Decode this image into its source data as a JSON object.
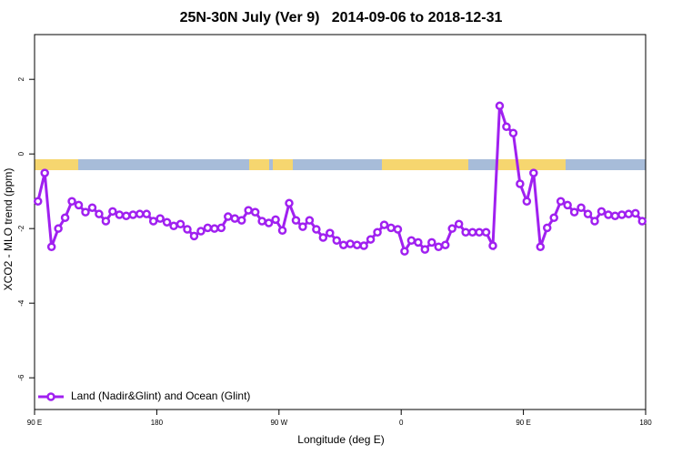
{
  "chart_data": {
    "type": "line",
    "title": "25N-30N July (Ver 9)   2014-09-06 to 2018-12-31",
    "x_label": "Longitude (deg E)",
    "y_label": "XCO2 - MLO trend (ppm)",
    "x": [
      92.5,
      97.5,
      102.5,
      107.5,
      112.5,
      117.5,
      122.5,
      127.5,
      132.5,
      137.5,
      142.5,
      147.5,
      152.5,
      157.5,
      162.5,
      167.5,
      172.5,
      177.5,
      182.5,
      187.5,
      192.5,
      197.5,
      202.5,
      207.5,
      212.5,
      217.5,
      222.5,
      227.5,
      232.5,
      237.5,
      242.5,
      247.5,
      252.5,
      257.5,
      262.5,
      267.5,
      272.5,
      277.5,
      282.5,
      287.5,
      292.5,
      297.5,
      302.5,
      307.5,
      312.5,
      317.5,
      322.5,
      327.5,
      332.5,
      337.5,
      342.5,
      347.5,
      352.5,
      357.5,
      362.5,
      367.5,
      372.5,
      377.5,
      382.5,
      387.5,
      392.5,
      397.5,
      402.5,
      407.5,
      412.5,
      417.5,
      422.5,
      427.5,
      432.5,
      437.5,
      442.5,
      447.5,
      452.5,
      457.5,
      462.5,
      467.5,
      472.5,
      477.5,
      482.5,
      487.5,
      492.5,
      497.5,
      502.5,
      507.5,
      512.5,
      517.5,
      522.5,
      527.5,
      532.5,
      537.5
    ],
    "series": [
      {
        "name": "Land (Nadir&Glint) and Ocean (Glint)",
        "color": "#a020f0",
        "values": [
          -1.27,
          -0.51,
          -2.49,
          -2.0,
          -1.71,
          -1.27,
          -1.37,
          -1.56,
          -1.44,
          -1.61,
          -1.8,
          -1.54,
          -1.63,
          -1.66,
          -1.63,
          -1.61,
          -1.61,
          -1.8,
          -1.73,
          -1.83,
          -1.93,
          -1.88,
          -2.02,
          -2.2,
          -2.07,
          -1.98,
          -2.0,
          -1.98,
          -1.68,
          -1.73,
          -1.78,
          -1.51,
          -1.56,
          -1.8,
          -1.85,
          -1.76,
          -2.05,
          -1.32,
          -1.78,
          -1.95,
          -1.78,
          -2.02,
          -2.24,
          -2.12,
          -2.32,
          -2.44,
          -2.41,
          -2.44,
          -2.46,
          -2.29,
          -2.1,
          -1.9,
          -1.98,
          -2.02,
          -2.61,
          -2.32,
          -2.37,
          -2.56,
          -2.37,
          -2.49,
          -2.44,
          -2.0,
          -1.88,
          -2.1,
          -2.1,
          -2.1,
          -2.1,
          -2.46,
          1.29,
          0.73,
          0.56,
          -0.8,
          -1.27,
          -0.51,
          -2.49,
          -1.98,
          -1.71,
          -1.27,
          -1.37,
          -1.56,
          -1.44,
          -1.61,
          -1.8,
          -1.54,
          -1.63,
          -1.66,
          -1.63,
          -1.61,
          -1.59,
          -1.8
        ]
      }
    ],
    "xlim": [
      90,
      540
    ],
    "xticks": [
      {
        "value": 90,
        "label": "90 E"
      },
      180,
      {
        "value": 270,
        "label": "90 W"
      },
      {
        "value": 360,
        "label": "0"
      },
      {
        "value": 450,
        "label": "90 E"
      },
      {
        "value": 540,
        "label": "180"
      }
    ],
    "ylim": [
      -6.85,
      3.2
    ],
    "yticks": [
      -6,
      -4,
      -2,
      0,
      2
    ],
    "legend": "bottom-left"
  }
}
